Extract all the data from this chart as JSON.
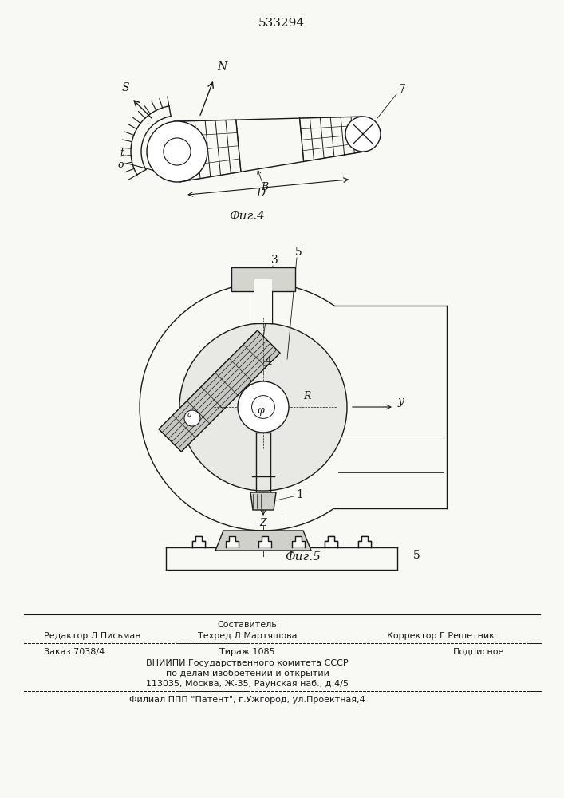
{
  "title_number": "533294",
  "fig4_label": "Фиг.4",
  "fig5_label": "Фиг.5",
  "bg_color": "#f8f8f5",
  "line_color": "#1a1a1a",
  "footer_texts": {
    "sostavitel": "Составитель",
    "redaktor": "Редактор Л.Письман",
    "tehred": "Техред Л.Мартяшова",
    "korrektor": "Корректор Г.Решетник",
    "zakaz": "Заказ 7038/4",
    "tirazh": "Тираж 1085",
    "podpisnoe": "Подписное",
    "vniipii": "ВНИИПИ Государственного комитета СССР",
    "po_delam": "по делам изобретений и открытий",
    "address": "113035, Москва, Ж-35, Раунская наб., д.4/5",
    "filial": "Филиал ППП \"Патент\", г.Ужгород, ул.Проектная,4"
  }
}
